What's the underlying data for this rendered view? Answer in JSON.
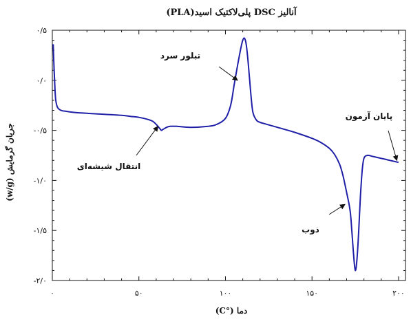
{
  "chart_data": {
    "type": "line",
    "title": "آنالیز DSC پلی‌لاکتیک اسید(PLA)",
    "xlabel": "دما (°C)",
    "ylabel": "جریان گرمایش (w/g)",
    "xlim": [
      0,
      204
    ],
    "ylim": [
      -2.0,
      0.5
    ],
    "x_ticks": [
      {
        "value": 0,
        "label": "۰"
      },
      {
        "value": 50,
        "label": "۵۰"
      },
      {
        "value": 100,
        "label": "۱۰۰"
      },
      {
        "value": 150,
        "label": "۱۵۰"
      },
      {
        "value": 200,
        "label": "۲۰۰"
      }
    ],
    "y_ticks": [
      {
        "value": 0.5,
        "label": "۰/۵"
      },
      {
        "value": 0.0,
        "label": "۰/۰"
      },
      {
        "value": -0.5,
        "label": "-۰/۵"
      },
      {
        "value": -1.0,
        "label": "-۱/۰"
      },
      {
        "value": -1.5,
        "label": "-۱/۵"
      },
      {
        "value": -2.0,
        "label": "-۲/۰"
      }
    ],
    "series": [
      {
        "color": "#1f1fa8",
        "x": [
          0.5,
          1,
          1.5,
          2,
          3,
          5,
          8,
          12,
          20,
          30,
          40,
          45,
          50,
          55,
          58,
          60,
          62,
          63,
          64,
          66,
          68,
          72,
          80,
          90,
          95,
          100,
          103,
          105,
          107,
          109,
          110,
          111,
          112,
          113,
          114,
          115,
          116,
          118,
          120,
          124,
          130,
          140,
          150,
          155,
          160,
          163,
          166,
          168,
          170,
          172,
          173,
          174,
          175,
          176,
          177,
          178,
          179,
          180,
          182,
          185,
          190,
          195,
          200
        ],
        "y": [
          0.36,
          0.12,
          -0.08,
          -0.2,
          -0.27,
          -0.3,
          -0.31,
          -0.32,
          -0.33,
          -0.34,
          -0.35,
          -0.36,
          -0.37,
          -0.39,
          -0.41,
          -0.44,
          -0.48,
          -0.5,
          -0.49,
          -0.47,
          -0.46,
          -0.46,
          -0.47,
          -0.46,
          -0.44,
          -0.38,
          -0.25,
          -0.05,
          0.15,
          0.33,
          0.4,
          0.42,
          0.36,
          0.2,
          0.0,
          -0.2,
          -0.33,
          -0.4,
          -0.42,
          -0.44,
          -0.47,
          -0.52,
          -0.58,
          -0.62,
          -0.68,
          -0.74,
          -0.84,
          -0.96,
          -1.12,
          -1.3,
          -1.5,
          -1.74,
          -1.9,
          -1.78,
          -1.5,
          -1.15,
          -0.9,
          -0.78,
          -0.75,
          -0.76,
          -0.78,
          -0.8,
          -0.82
        ]
      }
    ],
    "annotations": [
      {
        "text": "تبلور سرد",
        "x": 107,
        "y": 0.0
      },
      {
        "text": "انتقال شیشه‌ای",
        "x": 61,
        "y": -0.46
      },
      {
        "text": "پایان آزمون",
        "x": 199,
        "y": -0.8
      },
      {
        "text": "ذوب",
        "x": 169,
        "y": -1.24
      }
    ],
    "grid": false
  }
}
